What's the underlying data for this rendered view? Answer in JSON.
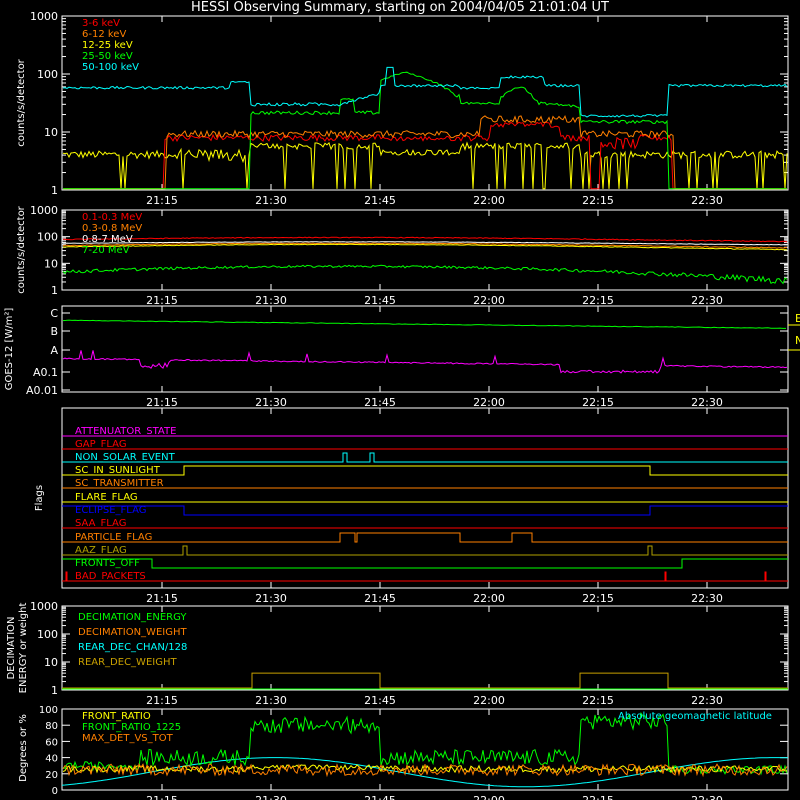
{
  "title": "HESSI Observing Summary, starting on 2004/04/05 21:01:04 UT",
  "time_ticks": [
    "21:15",
    "21:30",
    "21:45",
    "22:00",
    "22:15",
    "22:30"
  ],
  "colors": {
    "magenta": "#ff00ff",
    "red": "#ff0000",
    "orange": "#ff8000",
    "yellow": "#ffff00",
    "green": "#00ff00",
    "cyan": "#00ffff",
    "blue": "#0000ff",
    "olive": "#b0a000",
    "white": "#ffffff",
    "lightorange": "#ffa040",
    "darkyellow": "#c8a000"
  },
  "chart_data": [
    {
      "id": "lowE",
      "type": "line",
      "ylabel": "counts/s/detector",
      "yscale": "log",
      "ylim": [
        1,
        1000
      ],
      "yticks": [
        "1",
        "10",
        "100",
        "1000"
      ],
      "series": [
        {
          "name": "3-6 keV",
          "color": "#ff0000"
        },
        {
          "name": "6-12 keV",
          "color": "#ff8000"
        },
        {
          "name": "12-25 keV",
          "color": "#ffff00"
        },
        {
          "name": "25-50 keV",
          "color": "#00ff00"
        },
        {
          "name": "50-100 keV",
          "color": "#00ffff"
        }
      ]
    },
    {
      "id": "highE",
      "type": "line",
      "ylabel": "counts/s/detector",
      "yscale": "log",
      "ylim": [
        1,
        1000
      ],
      "yticks": [
        "1",
        "10",
        "100",
        "1000"
      ],
      "series": [
        {
          "name": "0.1-0.3 MeV",
          "color": "#ff0000"
        },
        {
          "name": "0.3-0.8 MeV",
          "color": "#ff8000"
        },
        {
          "name": "0.8-7 MeV",
          "color": "#ffffff"
        },
        {
          "name": "7-20 MeV",
          "color": "#00ff00"
        }
      ]
    },
    {
      "id": "goes",
      "type": "line",
      "ylabel": "GOES-12 [W/m²]",
      "yticks": [
        "C",
        "B",
        "A",
        "A0.1",
        "A0.01"
      ],
      "right_labels": [
        "E",
        "N"
      ]
    },
    {
      "id": "flags",
      "type": "line",
      "ylabel": "Flags",
      "flags": [
        {
          "name": "ATTENUATOR_STATE",
          "color": "#ff00ff"
        },
        {
          "name": "GAP_FLAG",
          "color": "#ff0000"
        },
        {
          "name": "NON_SOLAR_EVENT",
          "color": "#00ffff"
        },
        {
          "name": "SC_IN_SUNLIGHT",
          "color": "#ffff00"
        },
        {
          "name": "SC_TRANSMITTER",
          "color": "#ff8000"
        },
        {
          "name": "FLARE_FLAG",
          "color": "#ffff00"
        },
        {
          "name": "ECLIPSE_FLAG",
          "color": "#0000ff"
        },
        {
          "name": "SAA_FLAG",
          "color": "#ff0000"
        },
        {
          "name": "PARTICLE_FLAG",
          "color": "#ff8000"
        },
        {
          "name": "AAZ_FLAG",
          "color": "#b0a000"
        },
        {
          "name": "FRONTS_OFF",
          "color": "#00ff00"
        },
        {
          "name": "BAD_PACKETS",
          "color": "#ff0000"
        }
      ]
    },
    {
      "id": "decim",
      "type": "line",
      "ylabel": "DECIMATION ENERGY or weight",
      "yscale": "log",
      "yticks": [
        "1",
        "10",
        "100",
        "1000"
      ],
      "series": [
        {
          "name": "DECIMATION_ENERGY",
          "color": "#00ff00"
        },
        {
          "name": "DECIMATION_WEIGHT",
          "color": "#ff8000"
        },
        {
          "name": "REAR_DEC_CHAN/128",
          "color": "#00ffff"
        },
        {
          "name": "REAR_DEC_WEIGHT",
          "color": "#c8a000"
        }
      ]
    },
    {
      "id": "ratio",
      "type": "line",
      "ylabel": "Degrees or %",
      "ylim": [
        0,
        100
      ],
      "yticks": [
        "0",
        "20",
        "40",
        "60",
        "80",
        "100"
      ],
      "series": [
        {
          "name": "FRONT_RATIO",
          "color": "#ffff00"
        },
        {
          "name": "FRONT_RATIO_1225",
          "color": "#00ff00"
        },
        {
          "name": "MAX_DET_VS_TOT",
          "color": "#ff8000"
        }
      ],
      "annotation": "Absolute geomagnetic latitude"
    }
  ]
}
